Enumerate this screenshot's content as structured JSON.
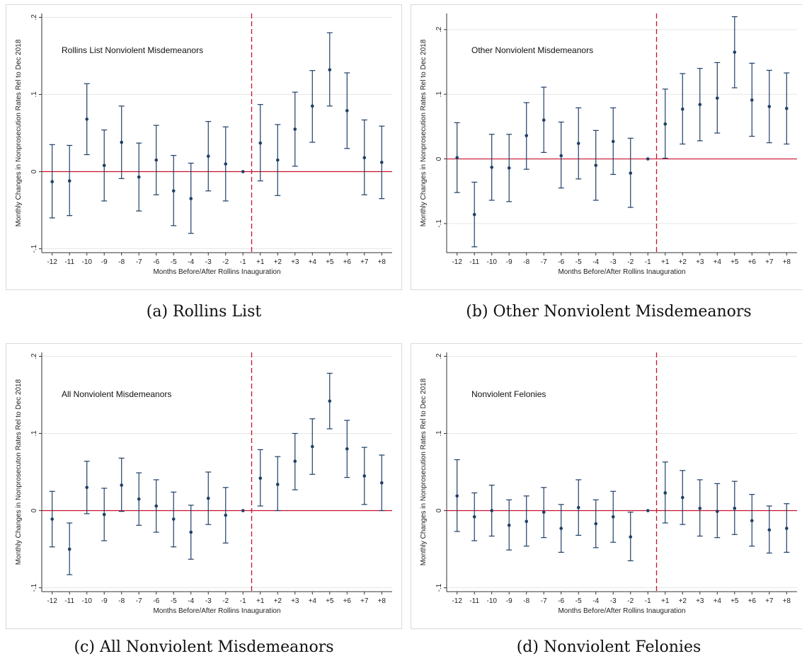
{
  "figure": {
    "x_tick_labels": [
      "-12",
      "-11",
      "-10",
      "-9",
      "-8",
      "-7",
      "-6",
      "-5",
      "-4",
      "-3",
      "-2",
      "-1",
      "+1",
      "+2",
      "+3",
      "+4",
      "+5",
      "+6",
      "+7",
      "+8"
    ],
    "colors": {
      "point": "#1f3f66",
      "zero_line": "#c8102e",
      "event_line": "#c8102e",
      "grid": "#e6e6e6"
    }
  },
  "chart_data": [
    {
      "type": "scatter",
      "caption": "(a) Rollins List",
      "annotation": "Rollins List Nonviolent Misdemeanors",
      "xlabel": "Months Before/After Rollins Inauguration",
      "ylabel": "Monthly Changes in Nonprosecution Rates Rel to Dec 2018",
      "ylim": [
        -0.105,
        0.205
      ],
      "yticks": [
        -0.1,
        0,
        0.1,
        0.2
      ],
      "ytick_labels": [
        "-.1",
        "0",
        ".1",
        ".2"
      ],
      "estimate": [
        -0.013,
        -0.012,
        0.068,
        0.008,
        0.038,
        -0.007,
        0.015,
        -0.025,
        -0.035,
        0.02,
        0.01,
        0,
        0.037,
        0.015,
        0.055,
        0.085,
        0.132,
        0.079,
        0.018,
        0.012
      ],
      "ci_low": [
        -0.06,
        -0.057,
        0.022,
        -0.038,
        -0.009,
        -0.051,
        -0.03,
        -0.07,
        -0.08,
        -0.025,
        -0.038,
        0,
        -0.012,
        -0.031,
        0.007,
        0.038,
        0.085,
        0.03,
        -0.03,
        -0.035
      ],
      "ci_high": [
        0.035,
        0.034,
        0.114,
        0.054,
        0.085,
        0.037,
        0.06,
        0.021,
        0.011,
        0.065,
        0.058,
        0,
        0.087,
        0.061,
        0.103,
        0.131,
        0.18,
        0.128,
        0.067,
        0.059
      ],
      "event_line_after": "-1",
      "grid": true
    },
    {
      "type": "scatter",
      "caption": "(b) Other Nonviolent Misdemeanors",
      "annotation": "Other Nonviolent Misdemeanors",
      "xlabel": "Months Before/After Rollins Inauguration",
      "ylabel": "Monthly Changes in Nonprosecution Rates Rel to Dec 2018",
      "ylim": [
        -0.145,
        0.225
      ],
      "yticks": [
        -0.1,
        0,
        0.1,
        0.2
      ],
      "ytick_labels": [
        "-.1",
        "0",
        ".1",
        ".2"
      ],
      "estimate": [
        0.002,
        -0.086,
        -0.013,
        -0.014,
        0.036,
        0.06,
        0.005,
        0.024,
        -0.01,
        0.027,
        -0.022,
        0,
        0.054,
        0.077,
        0.084,
        0.094,
        0.165,
        0.091,
        0.081,
        0.078
      ],
      "ci_low": [
        -0.052,
        -0.136,
        -0.064,
        -0.066,
        -0.016,
        0.01,
        -0.045,
        -0.031,
        -0.064,
        -0.024,
        -0.075,
        0,
        0.001,
        0.023,
        0.028,
        0.04,
        0.11,
        0.035,
        0.025,
        0.023
      ],
      "ci_high": [
        0.056,
        -0.036,
        0.038,
        0.038,
        0.087,
        0.111,
        0.057,
        0.079,
        0.044,
        0.079,
        0.032,
        0,
        0.108,
        0.132,
        0.14,
        0.149,
        0.22,
        0.148,
        0.137,
        0.133
      ],
      "event_line_after": "-1",
      "grid": true
    },
    {
      "type": "scatter",
      "caption": "(c) All Nonviolent Misdemeanors",
      "annotation": "All Nonviolent Misdemeanors",
      "xlabel": "Months Before/After Rollins Inauguration",
      "ylabel": "Monthly Changes in Nonprosecuton Rates Rel to Dec 2018",
      "ylim": [
        -0.105,
        0.205
      ],
      "yticks": [
        -0.1,
        0,
        0.1,
        0.2
      ],
      "ytick_labels": [
        "-.1",
        "0",
        ".1",
        ".2"
      ],
      "estimate": [
        -0.011,
        -0.05,
        0.03,
        -0.005,
        0.033,
        0.015,
        0.006,
        -0.011,
        -0.028,
        0.016,
        -0.006,
        0,
        0.042,
        0.034,
        0.064,
        0.083,
        0.142,
        0.08,
        0.045,
        0.036
      ],
      "ci_low": [
        -0.047,
        -0.083,
        -0.004,
        -0.039,
        -0.001,
        -0.019,
        -0.028,
        -0.047,
        -0.063,
        -0.018,
        -0.042,
        0,
        0.006,
        0,
        0.027,
        0.047,
        0.106,
        0.043,
        0.008,
        0
      ],
      "ci_high": [
        0.025,
        -0.016,
        0.064,
        0.029,
        0.068,
        0.049,
        0.04,
        0.024,
        0.007,
        0.05,
        0.03,
        0,
        0.079,
        0.07,
        0.1,
        0.119,
        0.178,
        0.117,
        0.082,
        0.072
      ],
      "event_line_after": "-1",
      "grid": true
    },
    {
      "type": "scatter",
      "caption": "(d) Nonviolent Felonies",
      "annotation": "Nonviolent Felonies",
      "xlabel": "Months Before/After Rollins Inauguration",
      "ylabel": "Monthly Changes in Nonprosecution Rates Rel to Dec 2018",
      "ylim": [
        -0.105,
        0.205
      ],
      "yticks": [
        -0.1,
        0,
        0.1,
        0.2
      ],
      "ytick_labels": [
        "-.1",
        "0",
        ".1",
        ".2"
      ],
      "estimate": [
        0.019,
        -0.008,
        0,
        -0.019,
        -0.014,
        -0.002,
        -0.023,
        0.004,
        -0.017,
        -0.008,
        -0.034,
        0,
        0.023,
        0.017,
        0.003,
        -0.001,
        0.003,
        -0.013,
        -0.025,
        -0.023
      ],
      "ci_low": [
        -0.027,
        -0.039,
        -0.033,
        -0.051,
        -0.046,
        -0.035,
        -0.054,
        -0.032,
        -0.048,
        -0.041,
        -0.065,
        0,
        -0.016,
        -0.018,
        -0.033,
        -0.035,
        -0.031,
        -0.046,
        -0.055,
        -0.054
      ],
      "ci_high": [
        0.066,
        0.023,
        0.033,
        0.014,
        0.019,
        0.03,
        0.008,
        0.04,
        0.014,
        0.025,
        -0.002,
        0,
        0.063,
        0.052,
        0.04,
        0.035,
        0.038,
        0.021,
        0.006,
        0.009
      ],
      "event_line_after": "-1",
      "grid": true
    }
  ]
}
